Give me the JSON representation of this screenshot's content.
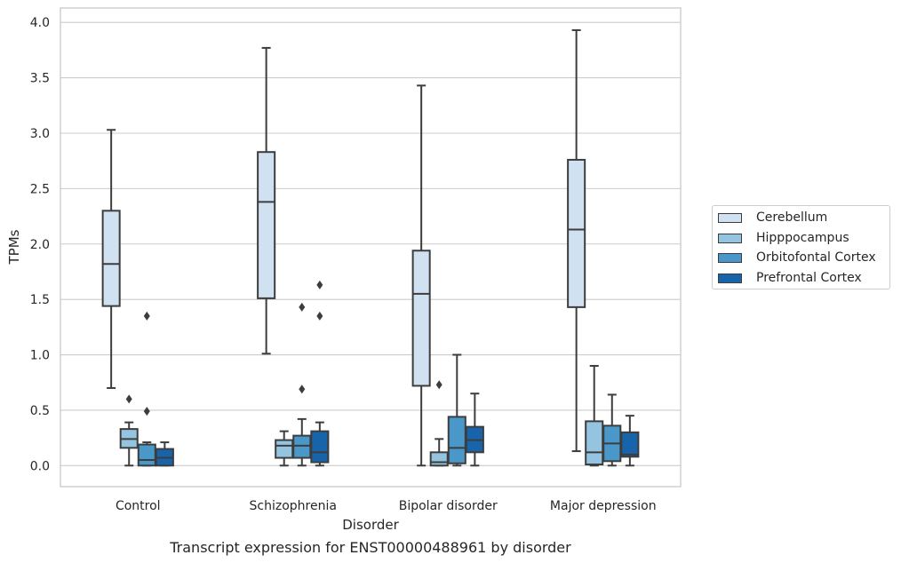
{
  "chart_data": {
    "type": "box",
    "title": "Transcript expression for ENST00000488961 by disorder",
    "xlabel": "Disorder",
    "ylabel": "TPMs",
    "ylim": [
      -0.19,
      4.13
    ],
    "yticks": [
      0.0,
      0.5,
      1.0,
      1.5,
      2.0,
      2.5,
      3.0,
      3.5,
      4.0
    ],
    "ytick_labels": [
      "0.0",
      "0.5",
      "1.0",
      "1.5",
      "2.0",
      "2.5",
      "3.0",
      "3.5",
      "4.0"
    ],
    "grid": "horizontal",
    "legend_position": "right",
    "categories": [
      "Control",
      "Schizophrenia",
      "Bipolar disorder",
      "Major depression"
    ],
    "series": [
      {
        "name": "Cerebellum",
        "color": "#d0e1f2",
        "boxes": [
          {
            "whisker_low": 0.7,
            "q1": 1.44,
            "median": 1.82,
            "q3": 2.3,
            "whisker_high": 3.03,
            "outliers": []
          },
          {
            "whisker_low": 1.01,
            "q1": 1.51,
            "median": 2.38,
            "q3": 2.83,
            "whisker_high": 3.77,
            "outliers": []
          },
          {
            "whisker_low": 0.0,
            "q1": 0.72,
            "median": 1.55,
            "q3": 1.94,
            "whisker_high": 3.43,
            "outliers": []
          },
          {
            "whisker_low": 0.13,
            "q1": 1.43,
            "median": 2.13,
            "q3": 2.76,
            "whisker_high": 3.93,
            "outliers": []
          }
        ]
      },
      {
        "name": "Hipppocampus",
        "color": "#94c4df",
        "boxes": [
          {
            "whisker_low": 0.0,
            "q1": 0.16,
            "median": 0.24,
            "q3": 0.33,
            "whisker_high": 0.39,
            "outliers": [
              0.6
            ]
          },
          {
            "whisker_low": 0.0,
            "q1": 0.07,
            "median": 0.18,
            "q3": 0.23,
            "whisker_high": 0.31,
            "outliers": []
          },
          {
            "whisker_low": 0.0,
            "q1": 0.0,
            "median": 0.03,
            "q3": 0.12,
            "whisker_high": 0.24,
            "outliers": [
              0.73
            ]
          },
          {
            "whisker_low": 0.0,
            "q1": 0.01,
            "median": 0.12,
            "q3": 0.4,
            "whisker_high": 0.9,
            "outliers": []
          }
        ]
      },
      {
        "name": "Orbitofontal Cortex",
        "color": "#4a98c9",
        "boxes": [
          {
            "whisker_low": 0.0,
            "q1": 0.0,
            "median": 0.05,
            "q3": 0.19,
            "whisker_high": 0.21,
            "outliers": [
              0.49,
              1.35
            ]
          },
          {
            "whisker_low": 0.0,
            "q1": 0.07,
            "median": 0.18,
            "q3": 0.27,
            "whisker_high": 0.42,
            "outliers": [
              0.69,
              1.43
            ]
          },
          {
            "whisker_low": 0.0,
            "q1": 0.02,
            "median": 0.16,
            "q3": 0.44,
            "whisker_high": 1.0,
            "outliers": []
          },
          {
            "whisker_low": 0.0,
            "q1": 0.04,
            "median": 0.2,
            "q3": 0.36,
            "whisker_high": 0.64,
            "outliers": []
          }
        ]
      },
      {
        "name": "Prefrontal Cortex",
        "color": "#1764ab",
        "boxes": [
          {
            "whisker_low": 0.0,
            "q1": 0.0,
            "median": 0.07,
            "q3": 0.15,
            "whisker_high": 0.21,
            "outliers": []
          },
          {
            "whisker_low": 0.0,
            "q1": 0.03,
            "median": 0.12,
            "q3": 0.31,
            "whisker_high": 0.39,
            "outliers": [
              1.35,
              1.63
            ]
          },
          {
            "whisker_low": 0.0,
            "q1": 0.12,
            "median": 0.23,
            "q3": 0.35,
            "whisker_high": 0.65,
            "outliers": []
          },
          {
            "whisker_low": 0.0,
            "q1": 0.08,
            "median": 0.1,
            "q3": 0.3,
            "whisker_high": 0.45,
            "outliers": []
          }
        ]
      }
    ]
  }
}
